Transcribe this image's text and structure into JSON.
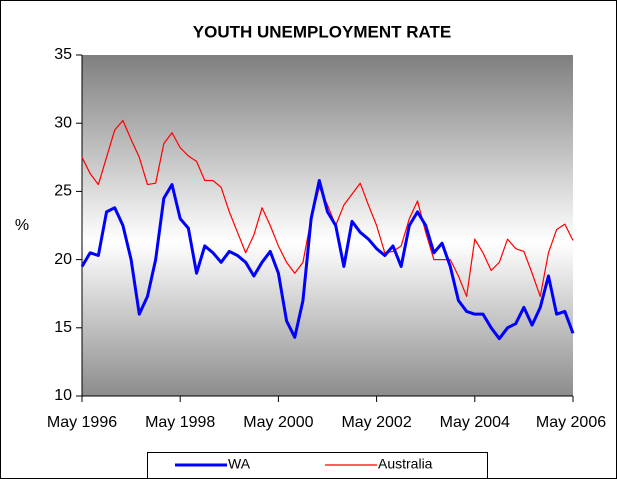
{
  "chart_data": {
    "type": "line",
    "title": "YOUTH UNEMPLOYMENT RATE",
    "y_label": "%",
    "x": [
      "1996-05",
      "1996-07",
      "1996-09",
      "1996-11",
      "1997-01",
      "1997-03",
      "1997-05",
      "1997-07",
      "1997-09",
      "1997-11",
      "1998-01",
      "1998-03",
      "1998-05",
      "1998-07",
      "1998-09",
      "1998-11",
      "1999-01",
      "1999-03",
      "1999-05",
      "1999-07",
      "1999-09",
      "1999-11",
      "2000-01",
      "2000-03",
      "2000-05",
      "2000-07",
      "2000-09",
      "2000-11",
      "2001-01",
      "2001-03",
      "2001-05",
      "2001-07",
      "2001-09",
      "2001-11",
      "2002-01",
      "2002-03",
      "2002-05",
      "2002-07",
      "2002-09",
      "2002-11",
      "2003-01",
      "2003-03",
      "2003-05",
      "2003-07",
      "2003-09",
      "2003-11",
      "2004-01",
      "2004-03",
      "2004-05",
      "2004-07",
      "2004-09",
      "2004-11",
      "2005-01",
      "2005-03",
      "2005-05",
      "2005-07",
      "2005-09",
      "2005-11",
      "2006-01",
      "2006-03",
      "2006-05"
    ],
    "series": [
      {
        "name": "WA",
        "color": "#0000ff",
        "width": 3,
        "values": [
          19.5,
          20.5,
          20.3,
          23.5,
          23.8,
          22.5,
          20,
          16,
          17.3,
          20,
          24.5,
          25.5,
          23,
          22.3,
          19,
          21,
          20.5,
          19.8,
          20.6,
          20.3,
          19.8,
          18.8,
          19.8,
          20.6,
          19,
          15.5,
          14.3,
          17,
          23,
          25.8,
          23.5,
          22.5,
          19.5,
          22.8,
          22,
          21.5,
          20.8,
          20.3,
          21,
          19.5,
          22.5,
          23.5,
          22.5,
          20.5,
          21.2,
          19.5,
          17,
          16.2,
          16,
          16,
          15,
          14.2,
          15,
          15.3,
          16.5,
          15.2,
          16.5,
          18.8,
          16,
          16.2,
          14.6
        ]
      },
      {
        "name": "Australia",
        "color": "#ff0000",
        "width": 1.2,
        "values": [
          27.5,
          26.3,
          25.5,
          27.5,
          29.5,
          30.2,
          28.8,
          27.5,
          25.5,
          25.6,
          28.5,
          29.3,
          28.2,
          27.6,
          27.2,
          25.8,
          25.8,
          25.3,
          23.5,
          22,
          20.5,
          21.8,
          23.8,
          22.5,
          21,
          19.8,
          19,
          19.8,
          23,
          25.3,
          24,
          22.5,
          24,
          24.8,
          25.6,
          24,
          22.5,
          20.5,
          20.6,
          21,
          23,
          24.3,
          22,
          20,
          20,
          20,
          18.8,
          17.3,
          21.5,
          20.5,
          19.2,
          19.8,
          21.5,
          20.8,
          20.6,
          19,
          17.3,
          20.5,
          22.2,
          22.6,
          21.4
        ]
      }
    ],
    "xlim": [
      "1996-05",
      "2006-05"
    ],
    "xticks": [
      {
        "value": "1996-05",
        "label": "May 1996"
      },
      {
        "value": "1998-05",
        "label": "May 1998"
      },
      {
        "value": "2000-05",
        "label": "May 2000"
      },
      {
        "value": "2002-05",
        "label": "May 2002"
      },
      {
        "value": "2004-05",
        "label": "May 2004"
      },
      {
        "value": "2006-05",
        "label": "May 2006"
      }
    ],
    "ylim": [
      10,
      35
    ],
    "yticks": [
      10,
      15,
      20,
      25,
      30,
      35
    ],
    "grid": false,
    "legend": "bottom"
  }
}
